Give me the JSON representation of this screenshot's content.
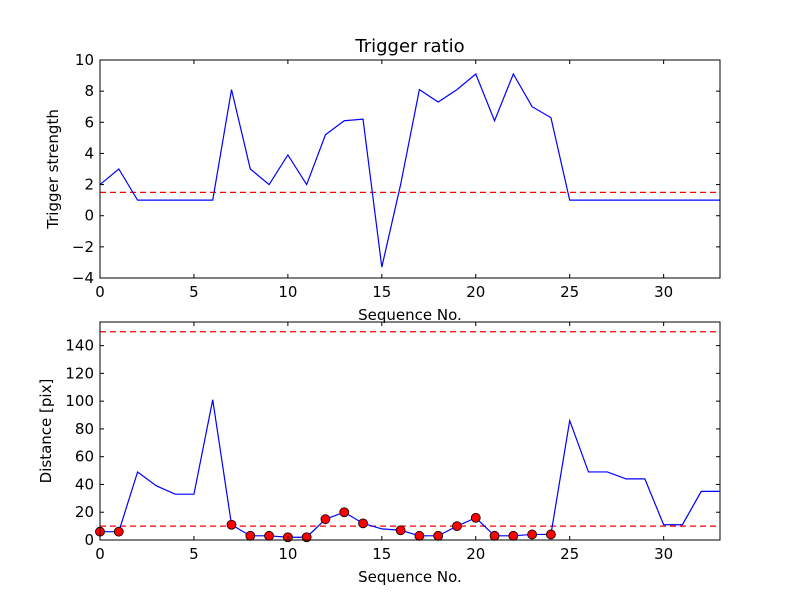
{
  "colors": {
    "series": "#0000ff",
    "threshold": "#ff0000",
    "marker": "#ff0000"
  },
  "chart_data": [
    {
      "type": "line",
      "title": "Trigger ratio",
      "xlabel": "Sequence No.",
      "ylabel": "Trigger strength",
      "xlim": [
        0,
        33
      ],
      "ylim": [
        -4,
        10
      ],
      "xticks": [
        0,
        5,
        10,
        15,
        20,
        25,
        30
      ],
      "xtick_labels": [
        "0",
        "5",
        "10",
        "15",
        "20",
        "25",
        "30"
      ],
      "yticks": [
        -4,
        -2,
        0,
        2,
        4,
        6,
        8,
        10
      ],
      "ytick_labels": [
        "−4",
        "−2",
        "0",
        "2",
        "4",
        "6",
        "8",
        "10"
      ],
      "x": [
        0,
        1,
        2,
        3,
        4,
        5,
        6,
        7,
        8,
        9,
        10,
        11,
        12,
        13,
        14,
        15,
        16,
        17,
        18,
        19,
        20,
        21,
        22,
        23,
        24,
        25,
        26,
        27,
        28,
        29,
        30,
        31,
        32,
        33
      ],
      "values": [
        2.0,
        3.0,
        1.0,
        1.0,
        1.0,
        1.0,
        1.0,
        8.1,
        3.0,
        2.0,
        3.9,
        2.0,
        5.2,
        6.1,
        6.2,
        -3.3,
        2.0,
        8.1,
        7.3,
        8.1,
        9.1,
        6.1,
        9.1,
        7.0,
        6.3,
        1.0,
        1.0,
        1.0,
        1.0,
        1.0,
        1.0,
        1.0,
        1.0,
        1.0
      ],
      "threshold": 1.5
    },
    {
      "type": "line",
      "title": "",
      "xlabel": "Sequence No.",
      "ylabel": "Distance [pix]",
      "xlim": [
        0,
        33
      ],
      "ylim": [
        0,
        157
      ],
      "xticks": [
        0,
        5,
        10,
        15,
        20,
        25,
        30
      ],
      "xtick_labels": [
        "0",
        "5",
        "10",
        "15",
        "20",
        "25",
        "30"
      ],
      "yticks": [
        0,
        20,
        40,
        60,
        80,
        100,
        120,
        140
      ],
      "ytick_labels": [
        "0",
        "20",
        "40",
        "60",
        "80",
        "100",
        "120",
        "140"
      ],
      "x": [
        0,
        1,
        2,
        3,
        4,
        5,
        6,
        7,
        8,
        9,
        10,
        11,
        12,
        13,
        14,
        15,
        16,
        17,
        18,
        19,
        20,
        21,
        22,
        23,
        24,
        25,
        26,
        27,
        28,
        29,
        30,
        31,
        32,
        33
      ],
      "values": [
        6,
        6,
        49,
        39,
        33,
        33,
        101,
        11,
        3,
        3,
        2,
        2,
        15,
        20,
        12,
        8,
        7,
        3,
        3,
        10,
        16,
        3,
        3,
        4,
        4,
        86,
        49,
        49,
        44,
        44,
        11,
        11,
        35,
        35
      ],
      "markers_x": [
        0,
        1,
        7,
        8,
        9,
        10,
        11,
        12,
        13,
        14,
        16,
        17,
        18,
        19,
        20,
        21,
        22,
        23,
        24
      ],
      "markers_y": [
        6,
        6,
        11,
        3,
        3,
        2,
        2,
        15,
        20,
        12,
        7,
        3,
        3,
        10,
        16,
        3,
        3,
        4,
        4
      ],
      "thresholds": [
        150,
        10
      ]
    }
  ]
}
